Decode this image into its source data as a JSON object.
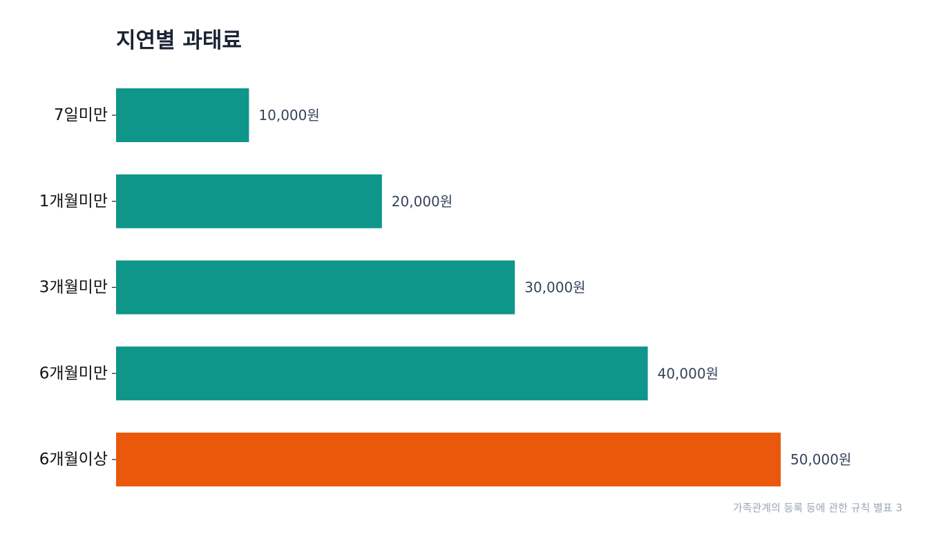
{
  "chart_data": {
    "type": "bar",
    "orientation": "horizontal",
    "title": "지연별 과태료",
    "categories": [
      "7일미만",
      "1개월미만",
      "3개월미만",
      "6개월미만",
      "6개월이상"
    ],
    "values": [
      10000,
      20000,
      30000,
      40000,
      50000
    ],
    "value_labels": [
      "10,000원",
      "20,000원",
      "30,000원",
      "40,000원",
      "50,000원"
    ],
    "bar_colors": [
      "#0e968a",
      "#0e968a",
      "#0e968a",
      "#0e968a",
      "#ea580c"
    ],
    "xlim": [
      0,
      50000
    ],
    "grid": false,
    "xlabel": "",
    "ylabel": "",
    "source": "가족관계의 등록 등에 관한 규칙 별표 3"
  }
}
